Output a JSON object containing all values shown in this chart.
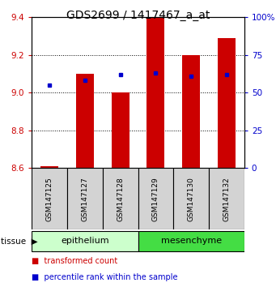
{
  "title": "GDS2699 / 1417467_a_at",
  "samples": [
    "GSM147125",
    "GSM147127",
    "GSM147128",
    "GSM147129",
    "GSM147130",
    "GSM147132"
  ],
  "transformed_counts": [
    8.61,
    9.1,
    9.0,
    9.4,
    9.2,
    9.29
  ],
  "percentile_ranks": [
    55,
    58,
    62,
    63,
    61,
    62
  ],
  "ylim_left": [
    8.6,
    9.4
  ],
  "ylim_right": [
    0,
    100
  ],
  "yticks_left": [
    8.6,
    8.8,
    9.0,
    9.2,
    9.4
  ],
  "yticks_right": [
    0,
    25,
    50,
    75,
    100
  ],
  "ytick_labels_right": [
    "0",
    "25",
    "50",
    "75",
    "100%"
  ],
  "groups": [
    {
      "name": "epithelium",
      "indices": [
        0,
        1,
        2
      ],
      "color": "#ccffcc"
    },
    {
      "name": "mesenchyme",
      "indices": [
        3,
        4,
        5
      ],
      "color": "#44dd44"
    }
  ],
  "bar_color": "#cc0000",
  "dot_color": "#0000cc",
  "bar_bottom": 8.6,
  "bar_width": 0.5,
  "tissue_label": "tissue",
  "legend_bar_label": "transformed count",
  "legend_dot_label": "percentile rank within the sample",
  "title_fontsize": 10,
  "tick_fontsize": 7.5,
  "sample_fontsize": 6.5,
  "tissue_fontsize": 8,
  "legend_fontsize": 7,
  "background_color": "#ffffff",
  "plot_bg_color": "#ffffff",
  "sample_bg_color": "#d3d3d3",
  "border_color": "#000000"
}
